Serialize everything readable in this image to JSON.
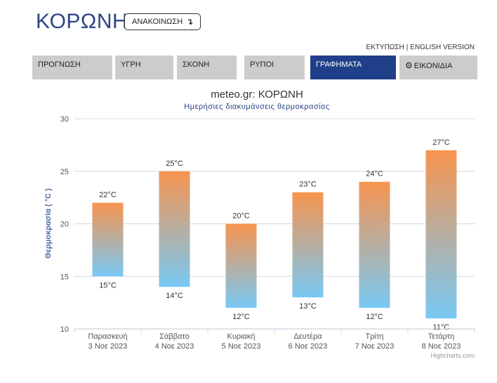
{
  "header": {
    "title": "ΚΟΡΩΝΗ",
    "announce_label": "ΑΝΑΚΟΙΝΩΣΗ",
    "announce_icon": "↴",
    "print_link": "ΕΚΤΥΠΩΣΗ",
    "separator": "|",
    "english_link": "ENGLISH VERSION"
  },
  "tabs": [
    {
      "label": "ΠΡΟΓΝΩΣΗ"
    },
    {
      "label": "ΥΓΡΗ"
    },
    {
      "label": "ΣΚΟΝΗ"
    },
    {
      "label": "ΡΥΠΟΙ"
    },
    {
      "label": "ΓΡΑΦΗΜΑΤΑ"
    },
    {
      "label": "ΕΙΚΟΝΙΔΙΑ",
      "icon": "gear-icon"
    }
  ],
  "colors": {
    "title": "#2d4585",
    "active_tab": "#1f3f88",
    "tab": "#cccccc",
    "bar_top": "#f7944f",
    "bar_bottom": "#78c8f4"
  },
  "chart_data": {
    "type": "bar",
    "title": "meteo.gr: ΚΟΡΩΝΗ",
    "subtitle": "Ημερήσιες διακυμάνσεις θερμοκρασίας",
    "ylabel": "Θερμοκρασία ( °C )",
    "ylim": [
      10,
      30
    ],
    "yticks": [
      10,
      15,
      20,
      25,
      30
    ],
    "unit": "°C",
    "categories": [
      {
        "day": "Παρασκευή",
        "date": "3 Νοε 2023"
      },
      {
        "day": "Σάββατο",
        "date": "4 Νοε 2023"
      },
      {
        "day": "Κυριακή",
        "date": "5 Νοε 2023"
      },
      {
        "day": "Δευτέρα",
        "date": "6 Νοε 2023"
      },
      {
        "day": "Τρίτη",
        "date": "7 Νοε 2023"
      },
      {
        "day": "Τετάρτη",
        "date": "8 Νοε 2023"
      }
    ],
    "max": [
      22,
      25,
      20,
      23,
      24,
      27
    ],
    "min": [
      15,
      14,
      12,
      13,
      12,
      11
    ],
    "max_labels": [
      "22°C",
      "25°C",
      "20°C",
      "23°C",
      "24°C",
      "27°C"
    ],
    "min_labels": [
      "15°C",
      "14°C",
      "12°C",
      "13°C",
      "12°C",
      "11°C"
    ],
    "credit": "Highcharts.com",
    "grid": true
  }
}
